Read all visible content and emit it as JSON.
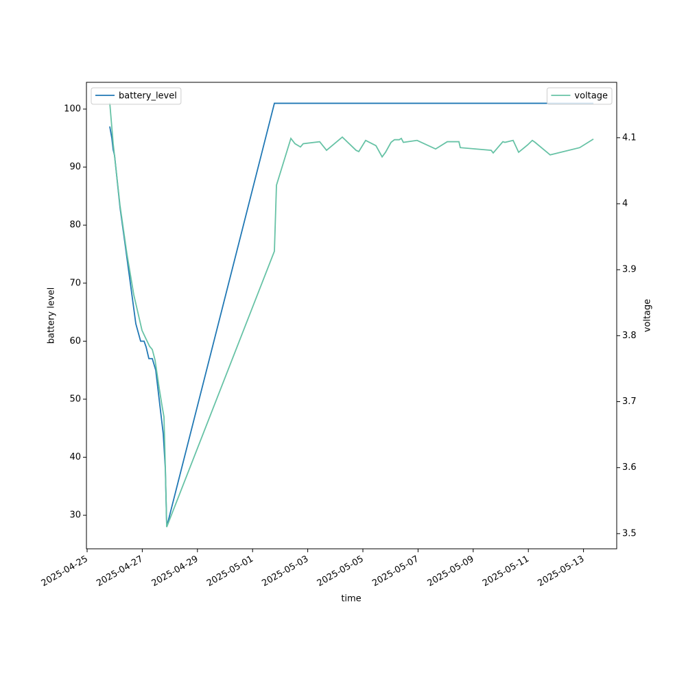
{
  "chart_data": {
    "type": "line",
    "xlabel": "time",
    "ylabel": "battery level",
    "y2label": "voltage",
    "xlim": [
      "2025-04-24T23:24",
      "2025-05-14T04:54"
    ],
    "xticks": [
      "2025-04-25",
      "2025-04-27",
      "2025-04-29",
      "2025-05-01",
      "2025-05-03",
      "2025-05-05",
      "2025-05-07",
      "2025-05-09",
      "2025-05-11",
      "2025-05-13"
    ],
    "ylim": [
      24.22,
      104.61
    ],
    "yticks": [
      30,
      40,
      50,
      60,
      70,
      80,
      90,
      100
    ],
    "y2lim": [
      3.477,
      4.184
    ],
    "y2ticks": [
      3.5,
      3.6,
      3.7,
      3.8,
      3.9,
      4.0,
      4.1
    ],
    "series": [
      {
        "name": "battery_level",
        "color": "#1f77b4",
        "axis": "y",
        "legend_loc": "upper left",
        "x": [
          "2025-04-25T19:42",
          "2025-04-25T21:30",
          "2025-04-25T22:41",
          "2025-04-25T23:53",
          "2025-04-26T04:39",
          "2025-04-26T08:50",
          "2025-04-26T13:37",
          "2025-04-26T18:23",
          "2025-04-26T22:34",
          "2025-04-27T01:34",
          "2025-04-27T03:20",
          "2025-04-27T05:44",
          "2025-04-27T08:43",
          "2025-04-27T11:43",
          "2025-04-27T15:17",
          "2025-04-27T18:16",
          "2025-04-27T20:04",
          "2025-04-27T21:16",
          "2025-05-01T18:59",
          "2025-05-13T08:35"
        ],
        "values": [
          97,
          95,
          93,
          92,
          83,
          77,
          70,
          63,
          60,
          60,
          59,
          57,
          57,
          55,
          49,
          44,
          38,
          28,
          101,
          101
        ]
      },
      {
        "name": "voltage",
        "color": "#66c2a5",
        "axis": "y2",
        "legend_loc": "upper right",
        "x": [
          "2025-04-25T19:42",
          "2025-04-25T22:41",
          "2025-04-26T01:40",
          "2025-04-26T04:39",
          "2025-04-26T10:38",
          "2025-04-26T16:36",
          "2025-04-26T23:46",
          "2025-04-27T02:45",
          "2025-04-27T06:20",
          "2025-04-27T08:43",
          "2025-04-27T11:07",
          "2025-04-27T14:41",
          "2025-04-27T17:04",
          "2025-04-27T18:52",
          "2025-04-27T20:04",
          "2025-04-27T21:16",
          "2025-05-01T18:59",
          "2025-05-01T20:47",
          "2025-05-02T09:19",
          "2025-05-02T12:53",
          "2025-05-02T17:40",
          "2025-05-02T20:04",
          "2025-05-03T10:23",
          "2025-05-03T16:22",
          "2025-05-04T06:06",
          "2025-05-04T18:02",
          "2025-05-04T20:25",
          "2025-05-05T02:24",
          "2025-05-05T11:21",
          "2025-05-05T16:44",
          "2025-05-05T19:42",
          "2025-05-06T00:29",
          "2025-05-06T03:27",
          "2025-05-06T07:38",
          "2025-05-06T09:26",
          "2025-05-06T11:14",
          "2025-05-06T23:10",
          "2025-05-07T15:17",
          "2025-05-08T01:26",
          "2025-05-08T11:35",
          "2025-05-08T12:46",
          "2025-05-09T15:38",
          "2025-05-09T17:25",
          "2025-05-10T01:48",
          "2025-05-10T03:35",
          "2025-05-10T10:45",
          "2025-05-10T15:32",
          "2025-05-10T23:17",
          "2025-05-11T03:27",
          "2025-05-11T05:51",
          "2025-05-11T18:59",
          "2025-05-12T20:40",
          "2025-05-13T08:35"
        ],
        "values": [
          4.153,
          4.091,
          4.044,
          3.997,
          3.924,
          3.862,
          3.808,
          3.797,
          3.784,
          3.779,
          3.763,
          3.721,
          3.695,
          3.677,
          3.602,
          3.51,
          3.928,
          4.028,
          4.099,
          4.091,
          4.086,
          4.091,
          4.094,
          4.081,
          4.101,
          4.081,
          4.079,
          4.096,
          4.088,
          4.071,
          4.078,
          4.093,
          4.097,
          4.097,
          4.099,
          4.093,
          4.096,
          4.083,
          4.094,
          4.094,
          4.085,
          4.081,
          4.077,
          4.094,
          4.093,
          4.096,
          4.078,
          4.089,
          4.096,
          4.093,
          4.074,
          4.085,
          4.098
        ]
      }
    ]
  }
}
